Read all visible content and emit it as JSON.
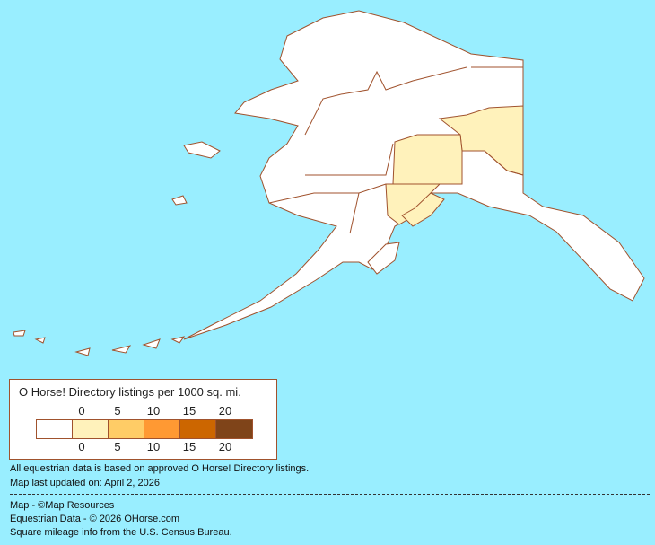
{
  "map": {
    "region": "Alaska",
    "land_color": "#FFFFFF",
    "water_color": "#99EEFF",
    "border_color": "#A0522D",
    "shaded_boroughs_level": "0-5"
  },
  "legend": {
    "title": "O Horse! Directory listings per 1000 sq. mi.",
    "top_ticks": [
      "0",
      "5",
      "10",
      "15",
      "20"
    ],
    "bottom_ticks": [
      "0",
      "5",
      "10",
      "15",
      "20"
    ],
    "colors": [
      "#FFFFFF",
      "#FFF2BB",
      "#FFCC66",
      "#FF9933",
      "#CC6600",
      "#7F4419"
    ]
  },
  "notes": {
    "line1": "All equestrian data is based on approved O Horse! Directory listings.",
    "line2": "Map last updated on: April 2, 2026",
    "credit1": "Map - ©Map Resources",
    "credit2": "Equestrian Data - © 2026 OHorse.com",
    "credit3": "Square mileage info from the U.S. Census Bureau."
  }
}
